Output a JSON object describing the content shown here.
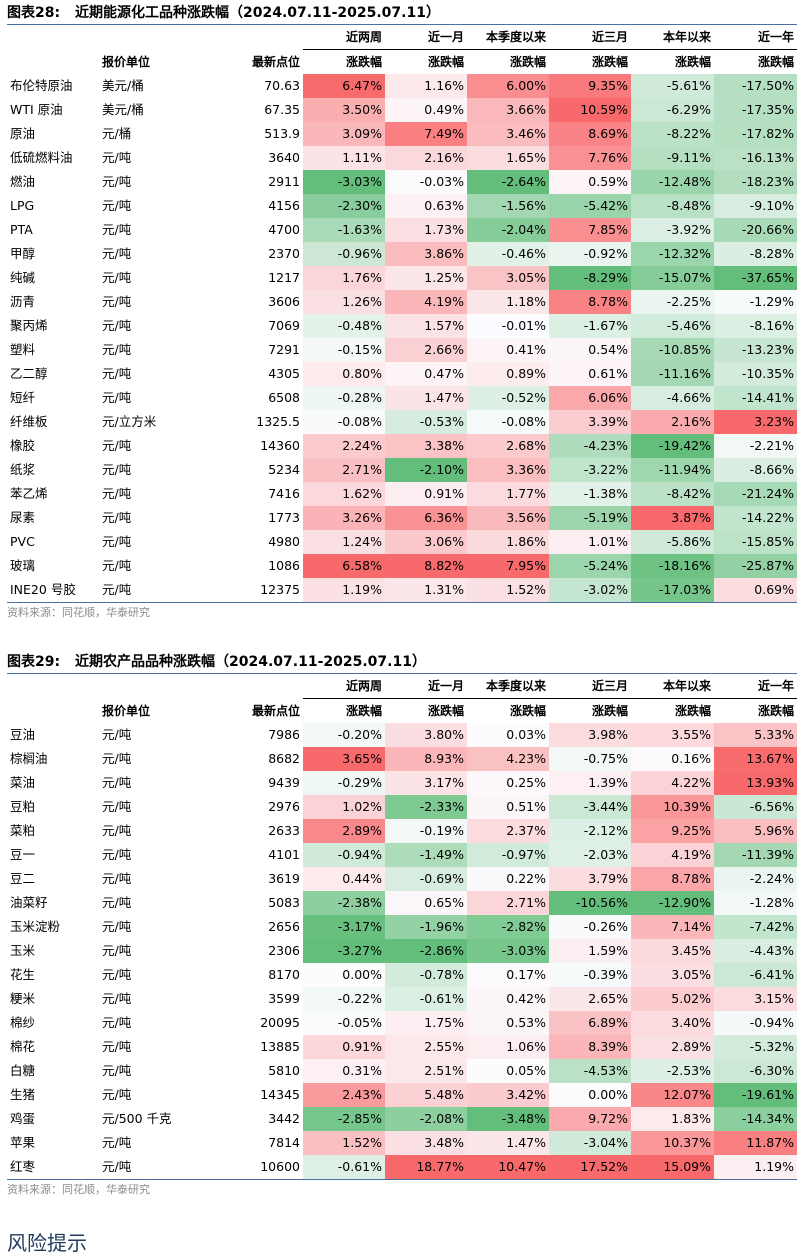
{
  "table28": {
    "label": "图表28:",
    "title": "近期能源化工品种涨跌幅（2024.07.11-2025.07.11）",
    "headers_top": [
      "",
      "",
      "",
      "近两周",
      "近一月",
      "本季度以来",
      "近三月",
      "本年以来",
      "近一年"
    ],
    "headers_bottom": [
      "",
      "报价单位",
      "最新点位",
      "涨跌幅",
      "涨跌幅",
      "涨跌幅",
      "涨跌幅",
      "涨跌幅",
      "涨跌幅"
    ],
    "rows": [
      [
        "布伦特原油",
        "美元/桶",
        "70.63",
        "6.47%",
        "1.16%",
        "6.00%",
        "9.35%",
        "-5.61%",
        "-17.50%"
      ],
      [
        "WTI 原油",
        "美元/桶",
        "67.35",
        "3.50%",
        "0.49%",
        "3.66%",
        "10.59%",
        "-6.29%",
        "-17.35%"
      ],
      [
        "原油",
        "元/桶",
        "513.9",
        "3.09%",
        "7.49%",
        "3.46%",
        "8.69%",
        "-8.22%",
        "-17.82%"
      ],
      [
        "低硫燃料油",
        "元/吨",
        "3640",
        "1.11%",
        "2.16%",
        "1.65%",
        "7.76%",
        "-9.11%",
        "-16.13%"
      ],
      [
        "燃油",
        "元/吨",
        "2911",
        "-3.03%",
        "-0.03%",
        "-2.64%",
        "0.59%",
        "-12.48%",
        "-18.23%"
      ],
      [
        "LPG",
        "元/吨",
        "4156",
        "-2.30%",
        "0.63%",
        "-1.56%",
        "-5.42%",
        "-8.48%",
        "-9.10%"
      ],
      [
        "PTA",
        "元/吨",
        "4700",
        "-1.63%",
        "1.73%",
        "-2.04%",
        "7.85%",
        "-3.92%",
        "-20.66%"
      ],
      [
        "甲醇",
        "元/吨",
        "2370",
        "-0.96%",
        "3.86%",
        "-0.46%",
        "-0.92%",
        "-12.32%",
        "-8.28%"
      ],
      [
        "纯碱",
        "元/吨",
        "1217",
        "1.76%",
        "1.25%",
        "3.05%",
        "-8.29%",
        "-15.07%",
        "-37.65%"
      ],
      [
        "沥青",
        "元/吨",
        "3606",
        "1.26%",
        "4.19%",
        "1.18%",
        "8.78%",
        "-2.25%",
        "-1.29%"
      ],
      [
        "聚丙烯",
        "元/吨",
        "7069",
        "-0.48%",
        "1.57%",
        "-0.01%",
        "-1.67%",
        "-5.46%",
        "-8.16%"
      ],
      [
        "塑料",
        "元/吨",
        "7291",
        "-0.15%",
        "2.66%",
        "0.41%",
        "0.54%",
        "-10.85%",
        "-13.23%"
      ],
      [
        "乙二醇",
        "元/吨",
        "4305",
        "0.80%",
        "0.47%",
        "0.89%",
        "0.61%",
        "-11.16%",
        "-10.35%"
      ],
      [
        "短纤",
        "元/吨",
        "6508",
        "-0.28%",
        "1.47%",
        "-0.52%",
        "6.06%",
        "-4.66%",
        "-14.41%"
      ],
      [
        "纤维板",
        "元/立方米",
        "1325.5",
        "-0.08%",
        "-0.53%",
        "-0.08%",
        "3.39%",
        "2.16%",
        "3.23%"
      ],
      [
        "橡胶",
        "元/吨",
        "14360",
        "2.24%",
        "3.38%",
        "2.68%",
        "-4.23%",
        "-19.42%",
        "-2.21%"
      ],
      [
        "纸浆",
        "元/吨",
        "5234",
        "2.71%",
        "-2.10%",
        "3.36%",
        "-3.22%",
        "-11.94%",
        "-8.66%"
      ],
      [
        "苯乙烯",
        "元/吨",
        "7416",
        "1.62%",
        "0.91%",
        "1.77%",
        "-1.38%",
        "-8.42%",
        "-21.24%"
      ],
      [
        "尿素",
        "元/吨",
        "1773",
        "3.26%",
        "6.36%",
        "3.56%",
        "-5.19%",
        "3.87%",
        "-14.22%"
      ],
      [
        "PVC",
        "元/吨",
        "4980",
        "1.24%",
        "3.06%",
        "1.86%",
        "1.01%",
        "-5.86%",
        "-15.85%"
      ],
      [
        "玻璃",
        "元/吨",
        "1086",
        "6.58%",
        "8.82%",
        "7.95%",
        "-5.24%",
        "-18.16%",
        "-25.87%"
      ],
      [
        "INE20 号胶",
        "元/吨",
        "12375",
        "1.19%",
        "1.31%",
        "1.52%",
        "-3.02%",
        "-17.03%",
        "0.69%"
      ]
    ],
    "source": "资料来源：同花顺，华泰研究"
  },
  "table29": {
    "label": "图表29:",
    "title": "近期农产品品种涨跌幅（2024.07.11-2025.07.11）",
    "headers_top": [
      "",
      "",
      "",
      "近两周",
      "近一月",
      "本季度以来",
      "近三月",
      "本年以来",
      "近一年"
    ],
    "headers_bottom": [
      "",
      "报价单位",
      "最新点位",
      "涨跌幅",
      "涨跌幅",
      "涨跌幅",
      "涨跌幅",
      "涨跌幅",
      "涨跌幅"
    ],
    "rows": [
      [
        "豆油",
        "元/吨",
        "7986",
        "-0.20%",
        "3.80%",
        "0.03%",
        "3.98%",
        "3.55%",
        "5.33%"
      ],
      [
        "棕榈油",
        "元/吨",
        "8682",
        "3.65%",
        "8.93%",
        "4.23%",
        "-0.75%",
        "0.16%",
        "13.67%"
      ],
      [
        "菜油",
        "元/吨",
        "9439",
        "-0.29%",
        "3.17%",
        "0.25%",
        "1.39%",
        "4.22%",
        "13.93%"
      ],
      [
        "豆粕",
        "元/吨",
        "2976",
        "1.02%",
        "-2.33%",
        "0.51%",
        "-3.44%",
        "10.39%",
        "-6.56%"
      ],
      [
        "菜粕",
        "元/吨",
        "2633",
        "2.89%",
        "-0.19%",
        "2.37%",
        "-2.12%",
        "9.25%",
        "5.96%"
      ],
      [
        "豆一",
        "元/吨",
        "4101",
        "-0.94%",
        "-1.49%",
        "-0.97%",
        "-2.03%",
        "4.19%",
        "-11.39%"
      ],
      [
        "豆二",
        "元/吨",
        "3619",
        "0.44%",
        "-0.69%",
        "0.22%",
        "3.79%",
        "8.78%",
        "-2.24%"
      ],
      [
        "油菜籽",
        "元/吨",
        "5083",
        "-2.38%",
        "0.65%",
        "2.71%",
        "-10.56%",
        "-12.90%",
        "-1.28%"
      ],
      [
        "玉米淀粉",
        "元/吨",
        "2656",
        "-3.17%",
        "-1.96%",
        "-2.82%",
        "-0.26%",
        "7.14%",
        "-7.42%"
      ],
      [
        "玉米",
        "元/吨",
        "2306",
        "-3.27%",
        "-2.86%",
        "-3.03%",
        "1.59%",
        "3.45%",
        "-4.43%"
      ],
      [
        "花生",
        "元/吨",
        "8170",
        "0.00%",
        "-0.78%",
        "0.17%",
        "-0.39%",
        "3.05%",
        "-6.41%"
      ],
      [
        "粳米",
        "元/吨",
        "3599",
        "-0.22%",
        "-0.61%",
        "0.42%",
        "2.65%",
        "5.02%",
        "3.15%"
      ],
      [
        "棉纱",
        "元/吨",
        "20095",
        "-0.05%",
        "1.75%",
        "0.53%",
        "6.89%",
        "3.40%",
        "-0.94%"
      ],
      [
        "棉花",
        "元/吨",
        "13885",
        "0.91%",
        "2.55%",
        "1.06%",
        "8.39%",
        "2.89%",
        "-5.32%"
      ],
      [
        "白糖",
        "元/吨",
        "5810",
        "0.31%",
        "2.51%",
        "0.05%",
        "-4.53%",
        "-2.53%",
        "-6.30%"
      ],
      [
        "生猪",
        "元/吨",
        "14345",
        "2.43%",
        "5.48%",
        "3.42%",
        "0.00%",
        "12.07%",
        "-19.61%"
      ],
      [
        "鸡蛋",
        "元/500 千克",
        "3442",
        "-2.85%",
        "-2.08%",
        "-3.48%",
        "9.72%",
        "1.83%",
        "-14.34%"
      ],
      [
        "苹果",
        "元/吨",
        "7814",
        "1.52%",
        "3.48%",
        "1.47%",
        "-3.04%",
        "10.37%",
        "11.87%"
      ],
      [
        "红枣",
        "元/吨",
        "10600",
        "-0.61%",
        "18.77%",
        "10.47%",
        "17.52%",
        "15.09%",
        "1.19%"
      ]
    ],
    "source": "资料来源：同花顺，华泰研究"
  },
  "risk_title": "风险提示",
  "colors": {
    "pos": "#f8696b",
    "neg": "#63be7b",
    "mid": "#fcfcff",
    "rule": "#4a6fa5"
  }
}
